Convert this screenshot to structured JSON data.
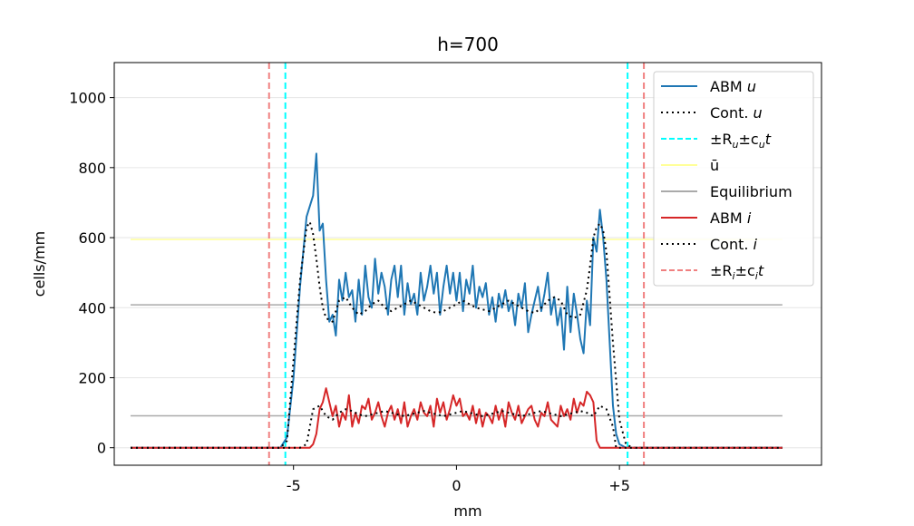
{
  "chart_data": {
    "type": "line",
    "title": "h=700",
    "xlabel": "mm",
    "ylabel": "cells/mm",
    "xlim": [
      -10.5,
      11.2
    ],
    "ylim": [
      -50,
      1100
    ],
    "xticks": [
      -5,
      0,
      5
    ],
    "xtick_labels": [
      "-5",
      "0",
      "+5"
    ],
    "yticks": [
      0,
      200,
      400,
      600,
      800,
      1000
    ],
    "ytick_labels": [
      "0",
      "200",
      "400",
      "600",
      "800",
      "1000"
    ],
    "grid": "horizontal",
    "legend_position": "top-right",
    "series": [
      {
        "name": "ABM u",
        "style": "solid",
        "color": "#1f77b4",
        "x": [
          -10.0,
          -5.6,
          -5.4,
          -5.2,
          -5.0,
          -4.8,
          -4.6,
          -4.4,
          -4.3,
          -4.2,
          -4.1,
          -4.0,
          -3.9,
          -3.8,
          -3.7,
          -3.6,
          -3.5,
          -3.4,
          -3.3,
          -3.2,
          -3.1,
          -3.0,
          -2.9,
          -2.8,
          -2.7,
          -2.6,
          -2.5,
          -2.4,
          -2.3,
          -2.2,
          -2.1,
          -2.0,
          -1.9,
          -1.8,
          -1.7,
          -1.6,
          -1.5,
          -1.4,
          -1.3,
          -1.2,
          -1.1,
          -1.0,
          -0.9,
          -0.8,
          -0.7,
          -0.6,
          -0.5,
          -0.4,
          -0.3,
          -0.2,
          -0.1,
          0.0,
          0.1,
          0.2,
          0.3,
          0.4,
          0.5,
          0.6,
          0.7,
          0.8,
          0.9,
          1.0,
          1.1,
          1.2,
          1.3,
          1.4,
          1.5,
          1.6,
          1.7,
          1.8,
          1.9,
          2.0,
          2.1,
          2.2,
          2.3,
          2.4,
          2.5,
          2.6,
          2.7,
          2.8,
          2.9,
          3.0,
          3.1,
          3.2,
          3.3,
          3.4,
          3.5,
          3.6,
          3.7,
          3.8,
          3.9,
          4.0,
          4.1,
          4.2,
          4.3,
          4.4,
          4.5,
          4.6,
          4.7,
          4.8,
          4.9,
          5.0,
          5.2,
          5.4,
          5.6,
          10.0
        ],
        "y": [
          0,
          0,
          0,
          30,
          200,
          460,
          660,
          720,
          840,
          620,
          640,
          480,
          360,
          380,
          320,
          480,
          420,
          500,
          430,
          450,
          360,
          480,
          380,
          520,
          430,
          400,
          540,
          440,
          500,
          460,
          380,
          480,
          520,
          430,
          520,
          380,
          470,
          410,
          440,
          380,
          500,
          420,
          460,
          520,
          440,
          500,
          380,
          460,
          520,
          440,
          500,
          420,
          500,
          390,
          480,
          440,
          520,
          400,
          460,
          430,
          470,
          380,
          430,
          360,
          440,
          400,
          450,
          390,
          420,
          350,
          440,
          400,
          470,
          330,
          380,
          420,
          460,
          390,
          440,
          500,
          380,
          430,
          350,
          400,
          280,
          460,
          330,
          440,
          380,
          310,
          270,
          420,
          350,
          600,
          560,
          680,
          600,
          480,
          300,
          120,
          40,
          10,
          0,
          0,
          0,
          0
        ],
        "data_label": ""
      },
      {
        "name": "Cont. u",
        "style": "dotted",
        "color": "#000000",
        "x": [
          -10.0,
          -5.6,
          -5.4,
          -5.2,
          -5.0,
          -4.8,
          -4.6,
          -4.5,
          -4.4,
          -4.3,
          -4.2,
          -4.1,
          -4.0,
          -3.8,
          -3.6,
          -3.4,
          -3.2,
          -3.0,
          -2.8,
          -2.6,
          -2.4,
          -2.2,
          -2.0,
          -1.8,
          -1.6,
          -1.4,
          -1.2,
          -1.0,
          -0.8,
          -0.6,
          -0.4,
          -0.2,
          0.0,
          0.2,
          0.4,
          0.6,
          0.8,
          1.0,
          1.2,
          1.4,
          1.6,
          1.8,
          2.0,
          2.2,
          2.4,
          2.6,
          2.8,
          3.0,
          3.2,
          3.4,
          3.6,
          3.8,
          4.0,
          4.1,
          4.2,
          4.3,
          4.4,
          4.5,
          4.6,
          4.8,
          5.0,
          5.2,
          5.4,
          5.6,
          10.0
        ],
        "y": [
          0,
          0,
          0,
          20,
          250,
          480,
          630,
          645,
          610,
          540,
          460,
          400,
          370,
          360,
          420,
          430,
          400,
          380,
          390,
          410,
          420,
          400,
          390,
          400,
          410,
          420,
          410,
          400,
          390,
          385,
          390,
          400,
          410,
          420,
          410,
          400,
          395,
          390,
          400,
          410,
          420,
          410,
          400,
          390,
          385,
          400,
          420,
          430,
          420,
          380,
          370,
          380,
          450,
          520,
          600,
          630,
          640,
          620,
          560,
          300,
          80,
          10,
          0,
          0,
          0
        ],
        "data_label": ""
      },
      {
        "name": "ABM i",
        "style": "solid",
        "color": "#d62728",
        "x": [
          -10.0,
          -4.6,
          -4.5,
          -4.4,
          -4.3,
          -4.2,
          -4.1,
          -4.0,
          -3.9,
          -3.8,
          -3.7,
          -3.6,
          -3.5,
          -3.4,
          -3.3,
          -3.2,
          -3.1,
          -3.0,
          -2.9,
          -2.8,
          -2.7,
          -2.6,
          -2.5,
          -2.4,
          -2.3,
          -2.2,
          -2.1,
          -2.0,
          -1.9,
          -1.8,
          -1.7,
          -1.6,
          -1.5,
          -1.4,
          -1.3,
          -1.2,
          -1.1,
          -1.0,
          -0.9,
          -0.8,
          -0.7,
          -0.6,
          -0.5,
          -0.4,
          -0.3,
          -0.2,
          -0.1,
          0.0,
          0.1,
          0.2,
          0.3,
          0.4,
          0.5,
          0.6,
          0.7,
          0.8,
          0.9,
          1.0,
          1.1,
          1.2,
          1.3,
          1.4,
          1.5,
          1.6,
          1.7,
          1.8,
          1.9,
          2.0,
          2.1,
          2.2,
          2.3,
          2.4,
          2.5,
          2.6,
          2.7,
          2.8,
          2.9,
          3.0,
          3.1,
          3.2,
          3.3,
          3.4,
          3.5,
          3.6,
          3.7,
          3.8,
          3.9,
          4.0,
          4.1,
          4.2,
          4.3,
          4.4,
          4.5,
          4.6,
          4.7,
          4.8,
          10.0
        ],
        "y": [
          0,
          0,
          0,
          10,
          40,
          110,
          130,
          170,
          130,
          90,
          120,
          60,
          100,
          80,
          150,
          60,
          100,
          70,
          120,
          110,
          140,
          80,
          100,
          130,
          90,
          60,
          100,
          120,
          80,
          110,
          70,
          130,
          60,
          90,
          110,
          80,
          130,
          100,
          90,
          120,
          60,
          140,
          100,
          130,
          80,
          110,
          150,
          120,
          140,
          90,
          100,
          80,
          120,
          70,
          110,
          60,
          100,
          90,
          70,
          120,
          80,
          110,
          60,
          130,
          100,
          80,
          120,
          70,
          90,
          110,
          120,
          80,
          60,
          100,
          90,
          130,
          80,
          70,
          60,
          120,
          90,
          110,
          80,
          140,
          100,
          130,
          120,
          160,
          150,
          130,
          20,
          0,
          0,
          0,
          0,
          0,
          0
        ],
        "data_label": ""
      },
      {
        "name": "Cont. i",
        "style": "dotted",
        "color": "#000000",
        "x": [
          -10.0,
          -4.9,
          -4.8,
          -4.6,
          -4.5,
          -4.4,
          -4.2,
          -4.0,
          -3.8,
          -3.6,
          -3.4,
          -3.2,
          -3.0,
          -2.8,
          -2.6,
          -2.4,
          -2.2,
          -2.0,
          -1.8,
          -1.6,
          -1.4,
          -1.2,
          -1.0,
          -0.8,
          -0.6,
          -0.4,
          -0.2,
          0.0,
          0.2,
          0.4,
          0.6,
          0.8,
          1.0,
          1.2,
          1.4,
          1.6,
          1.8,
          2.0,
          2.2,
          2.4,
          2.6,
          2.8,
          3.0,
          3.2,
          3.4,
          3.6,
          3.8,
          4.0,
          4.2,
          4.4,
          4.6,
          4.8,
          4.9,
          10.0
        ],
        "y": [
          0,
          0,
          0,
          10,
          60,
          110,
          120,
          90,
          80,
          100,
          110,
          105,
          95,
          90,
          95,
          100,
          105,
          100,
          95,
          90,
          95,
          100,
          105,
          100,
          95,
          90,
          95,
          100,
          105,
          100,
          95,
          90,
          95,
          100,
          105,
          100,
          95,
          90,
          95,
          100,
          105,
          100,
          95,
          90,
          95,
          100,
          105,
          100,
          90,
          120,
          110,
          60,
          0,
          0
        ],
        "data_label": ""
      }
    ],
    "hlines": [
      {
        "name": "ū",
        "y": 595,
        "color": "#ffff99",
        "x_from": -10.0,
        "x_to": 10.0
      },
      {
        "name": "Equilibrium",
        "y": 408,
        "color": "#aaaaaa",
        "x_from": -10.0,
        "x_to": 10.0
      },
      {
        "name": "Equilibrium",
        "y": 91,
        "color": "#aaaaaa",
        "x_from": -10.0,
        "x_to": 10.0
      }
    ],
    "vlines": [
      {
        "name": "±R_u ± c_u t",
        "x": -5.25,
        "color": "#00ffff",
        "style": "dashed"
      },
      {
        "name": "±R_u ± c_u t",
        "x": 5.25,
        "color": "#00ffff",
        "style": "dashed"
      },
      {
        "name": "±R_i ± c_i t",
        "x": -5.75,
        "color": "#f08080",
        "style": "dashed"
      },
      {
        "name": "±R_i ± c_i t",
        "x": 5.75,
        "color": "#f08080",
        "style": "dashed"
      }
    ],
    "legend": [
      {
        "label": "ABM ",
        "italic": "u",
        "color": "#1f77b4",
        "style": "solid"
      },
      {
        "label": "Cont. ",
        "italic": "u",
        "color": "#000000",
        "style": "dotted"
      },
      {
        "label": "±R",
        "sub": "u",
        "rest": "±c",
        "sub2": "u",
        "tail": "t",
        "color": "#00ffff",
        "style": "dashed"
      },
      {
        "label": "ū",
        "color": "#ffff99",
        "style": "solid"
      },
      {
        "label": "Equilibrium",
        "color": "#aaaaaa",
        "style": "solid"
      },
      {
        "label": "ABM ",
        "italic": "i",
        "color": "#d62728",
        "style": "solid"
      },
      {
        "label": "Cont. ",
        "italic": "i",
        "color": "#000000",
        "style": "dotted"
      },
      {
        "label": "±R",
        "sub": "i",
        "rest": "±c",
        "sub2": "i",
        "tail": "t",
        "color": "#f08080",
        "style": "dashed"
      }
    ]
  }
}
